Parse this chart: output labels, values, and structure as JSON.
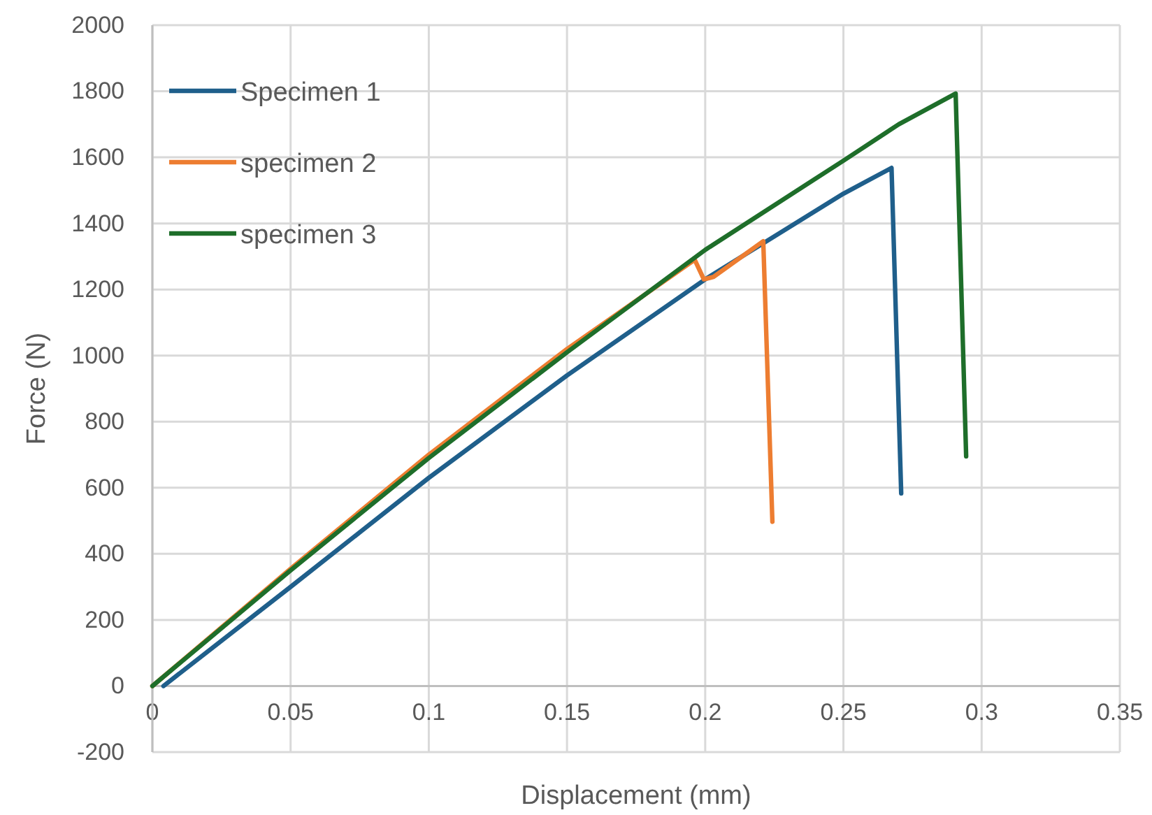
{
  "chart_data": {
    "type": "line",
    "xlabel": "Displacement (mm)",
    "ylabel": "Force (N)",
    "xlim": [
      0,
      0.35
    ],
    "xticks": [
      0,
      0.05,
      0.1,
      0.15,
      0.2,
      0.25,
      0.3,
      0.35
    ],
    "ylim": [
      -200,
      2000
    ],
    "yticks": [
      -200,
      0,
      200,
      400,
      600,
      800,
      1000,
      1200,
      1400,
      1600,
      1800,
      2000
    ],
    "grid": true,
    "legend": "top left",
    "marker": "none",
    "line_style": "solid",
    "series": [
      {
        "name": "Specimen 1",
        "color": "#1f5f8b",
        "x": [
          0.004,
          0.05,
          0.1,
          0.15,
          0.2,
          0.25,
          0.2674,
          0.2709
        ],
        "values": [
          0,
          300,
          630,
          940,
          1231,
          1490,
          1568,
          583
        ]
      },
      {
        "name": "specimen 2",
        "color": "#ed7d31",
        "x": [
          0,
          0.05,
          0.1,
          0.15,
          0.1962,
          0.1995,
          0.203,
          0.221,
          0.2243
        ],
        "values": [
          0,
          355,
          700,
          1020,
          1290,
          1231,
          1238,
          1346,
          497
        ]
      },
      {
        "name": "specimen 3",
        "color": "#1e6e2a",
        "x": [
          0,
          0.05,
          0.1,
          0.15,
          0.2,
          0.25,
          0.27,
          0.2906,
          0.2944
        ],
        "values": [
          0,
          350,
          690,
          1010,
          1320,
          1590,
          1700,
          1793,
          695
        ]
      }
    ]
  }
}
